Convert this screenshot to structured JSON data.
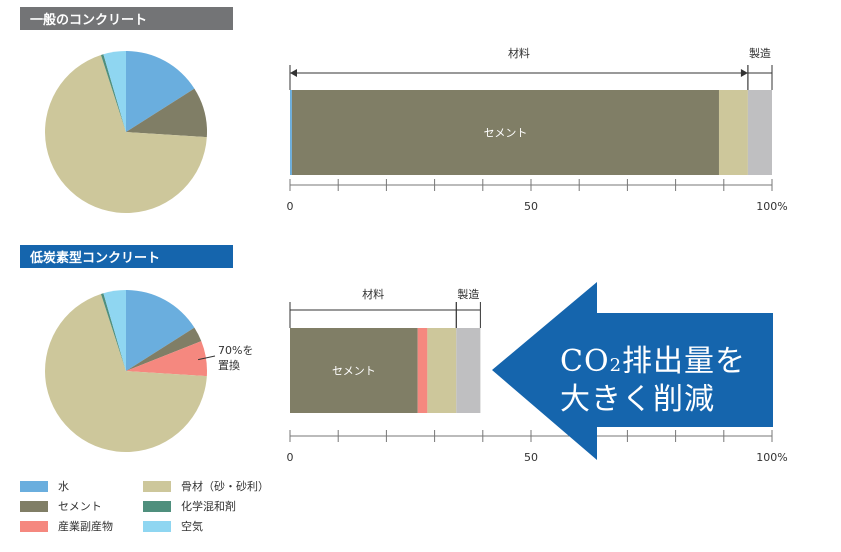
{
  "colors": {
    "title_bg_1": "#737476",
    "title_bg_2": "#1565ad",
    "water": "#6aaede",
    "cement": "#807e66",
    "byproduct": "#f5887f",
    "aggregate": "#cdc79b",
    "admixture": "#4f8f7d",
    "air": "#8fd6f1",
    "manufacturing": "#bfbfc1",
    "arrow": "#1565ad"
  },
  "titles": {
    "conventional": "一般のコンクリート",
    "low_carbon": "低炭素型コンクリート"
  },
  "annotations": {
    "replace_line1": "70%を",
    "replace_line2": "置換",
    "arrow_line1_prefix": "CO",
    "arrow_line1_sub": "2",
    "arrow_line1_suffix": "排出量を",
    "arrow_line2": "大きく削減"
  },
  "legend": [
    {
      "label": "水",
      "color_key": "water"
    },
    {
      "label": "骨材（砂・砂利）",
      "color_key": "aggregate"
    },
    {
      "label": "セメント",
      "color_key": "cement"
    },
    {
      "label": "化学混和剤",
      "color_key": "admixture"
    },
    {
      "label": "産業副産物",
      "color_key": "byproduct"
    },
    {
      "label": "空気",
      "color_key": "air"
    }
  ],
  "chart_data": [
    {
      "type": "pie",
      "id": "pie-conventional",
      "slices": [
        {
          "name": "水",
          "value": 16,
          "color_key": "water"
        },
        {
          "name": "セメント",
          "value": 10,
          "color_key": "cement"
        },
        {
          "name": "骨材（砂・砂利）",
          "value": 69,
          "color_key": "aggregate"
        },
        {
          "name": "化学混和剤",
          "value": 0.5,
          "color_key": "admixture"
        },
        {
          "name": "空気",
          "value": 4.5,
          "color_key": "air"
        }
      ]
    },
    {
      "type": "bar",
      "id": "bar-conventional",
      "orientation": "horizontal-stacked",
      "xlim": [
        0,
        100
      ],
      "ticks": [
        0,
        50,
        100
      ],
      "tick_labels": [
        "0",
        "50",
        "100%"
      ],
      "segments": [
        {
          "name": "水",
          "value": 0.4,
          "color_key": "water"
        },
        {
          "name": "セメント",
          "value": 88.6,
          "color_key": "cement",
          "label": "セメント"
        },
        {
          "name": "骨材",
          "value": 6,
          "color_key": "aggregate"
        },
        {
          "name": "製造",
          "value": 5,
          "color_key": "manufacturing"
        }
      ],
      "brackets": [
        {
          "label": "材料",
          "from": 0,
          "to": 95
        },
        {
          "label": "製造",
          "from": 95,
          "to": 100
        }
      ]
    },
    {
      "type": "pie",
      "id": "pie-lowcarbon",
      "slices": [
        {
          "name": "水",
          "value": 16,
          "color_key": "water"
        },
        {
          "name": "セメント",
          "value": 3,
          "color_key": "cement"
        },
        {
          "name": "産業副産物",
          "value": 7,
          "color_key": "byproduct"
        },
        {
          "name": "骨材（砂・砂利）",
          "value": 69,
          "color_key": "aggregate"
        },
        {
          "name": "化学混和剤",
          "value": 0.5,
          "color_key": "admixture"
        },
        {
          "name": "空気",
          "value": 4.5,
          "color_key": "air"
        }
      ]
    },
    {
      "type": "bar",
      "id": "bar-lowcarbon",
      "orientation": "horizontal-stacked",
      "xlim": [
        0,
        100
      ],
      "ticks": [
        0,
        50,
        100
      ],
      "tick_labels": [
        "0",
        "50",
        "100%"
      ],
      "segments": [
        {
          "name": "セメント",
          "value": 26.5,
          "color_key": "cement",
          "label": "セメント"
        },
        {
          "name": "産業副産物",
          "value": 2,
          "color_key": "byproduct"
        },
        {
          "name": "骨材",
          "value": 6,
          "color_key": "aggregate"
        },
        {
          "name": "製造",
          "value": 5,
          "color_key": "manufacturing"
        }
      ],
      "brackets": [
        {
          "label": "材料",
          "from": 0,
          "to": 34.5
        },
        {
          "label": "製造",
          "from": 34.5,
          "to": 39.5
        }
      ]
    }
  ]
}
